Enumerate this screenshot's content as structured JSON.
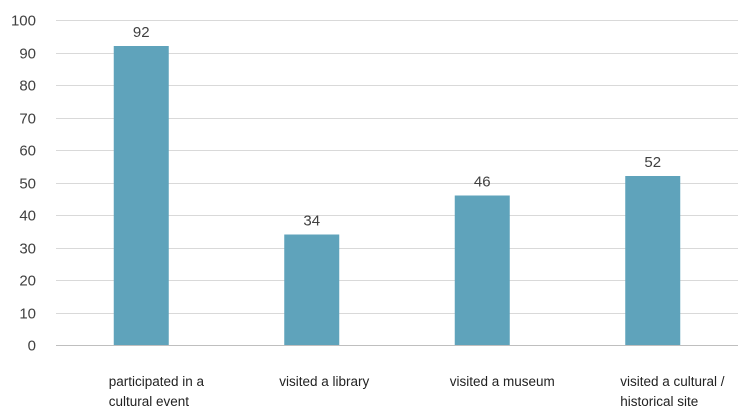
{
  "chart_data": {
    "type": "bar",
    "title": "",
    "xlabel": "",
    "ylabel": "",
    "categories": [
      [
        "participated in a",
        "cultural event"
      ],
      [
        "visited a library"
      ],
      [
        "visited a museum"
      ],
      [
        "visited a cultural /",
        "historical site"
      ]
    ],
    "values": [
      92,
      34,
      46,
      52
    ],
    "ylim": [
      0,
      100
    ],
    "yticks": [
      0,
      10,
      20,
      30,
      40,
      50,
      60,
      70,
      80,
      90,
      100
    ],
    "grid": true,
    "legend": "none",
    "bar_color": "#5fa3bb",
    "data_labels": true
  }
}
